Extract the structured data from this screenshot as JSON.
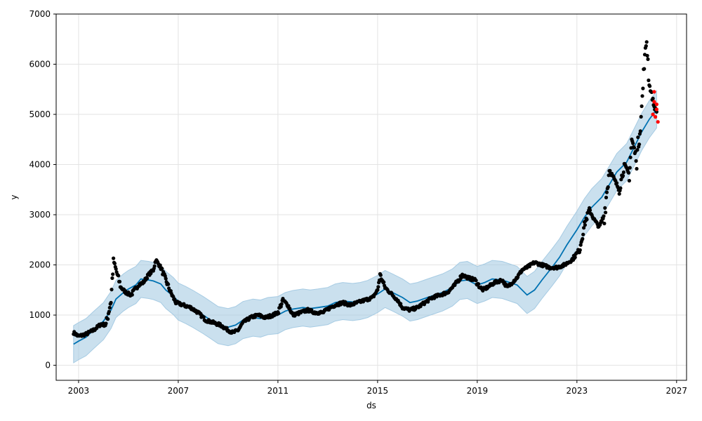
{
  "chart_data": {
    "type": "line",
    "title": "",
    "xlabel": "ds",
    "ylabel": "y",
    "xlim": [
      2002.1,
      2027.4
    ],
    "ylim": [
      -300,
      7000
    ],
    "x_ticks": [
      2003,
      2007,
      2011,
      2015,
      2019,
      2023,
      2027
    ],
    "y_ticks": [
      0,
      1000,
      2000,
      3000,
      4000,
      5000,
      6000,
      7000
    ],
    "x_tick_labels": [
      "2003",
      "2007",
      "2011",
      "2015",
      "2019",
      "2023",
      "2027"
    ],
    "y_tick_labels": [
      "0",
      "1000",
      "2000",
      "3000",
      "4000",
      "5000",
      "6000",
      "7000"
    ],
    "grid": true,
    "colors": {
      "actual": "#000000",
      "forecast": "#0072b2",
      "interval": "#a6cbe3",
      "highlight": "#ff0000"
    },
    "series": [
      {
        "kind": "forecast",
        "x": [
          2002.8,
          2003.0,
          2003.3,
          2003.6,
          2004.0,
          2004.3,
          2004.5,
          2004.8,
          2005.0,
          2005.3,
          2005.5,
          2005.8,
          2006.0,
          2006.3,
          2006.5,
          2006.8,
          2007.0,
          2007.3,
          2007.6,
          2008.0,
          2008.3,
          2008.6,
          2009.0,
          2009.3,
          2009.6,
          2010.0,
          2010.3,
          2010.6,
          2011.0,
          2011.3,
          2011.6,
          2012.0,
          2012.3,
          2012.6,
          2013.0,
          2013.3,
          2013.6,
          2014.0,
          2014.3,
          2014.6,
          2015.0,
          2015.3,
          2015.6,
          2016.0,
          2016.3,
          2016.6,
          2017.0,
          2017.3,
          2017.6,
          2018.0,
          2018.3,
          2018.6,
          2019.0,
          2019.3,
          2019.6,
          2020.0,
          2020.3,
          2020.6,
          2021.0,
          2021.3,
          2021.6,
          2022.0,
          2022.3,
          2022.6,
          2023.0,
          2023.3,
          2023.6,
          2024.0,
          2024.3,
          2024.6,
          2025.0,
          2025.3,
          2025.6,
          2025.9,
          2026.2
        ],
        "values": [
          420,
          480,
          560,
          700,
          880,
          1100,
          1320,
          1450,
          1520,
          1600,
          1720,
          1700,
          1680,
          1620,
          1500,
          1380,
          1270,
          1200,
          1120,
          1000,
          900,
          800,
          760,
          800,
          900,
          950,
          930,
          980,
          1000,
          1080,
          1120,
          1150,
          1130,
          1150,
          1180,
          1250,
          1280,
          1260,
          1280,
          1320,
          1420,
          1520,
          1450,
          1350,
          1250,
          1280,
          1350,
          1400,
          1450,
          1550,
          1680,
          1700,
          1600,
          1650,
          1720,
          1700,
          1650,
          1600,
          1400,
          1500,
          1700,
          1950,
          2150,
          2400,
          2700,
          2950,
          3150,
          3350,
          3600,
          3850,
          4050,
          4350,
          4650,
          4900,
          5100
        ]
      },
      {
        "kind": "interval-upper",
        "x": [
          2002.8,
          2003.0,
          2003.3,
          2003.6,
          2004.0,
          2004.3,
          2004.5,
          2004.8,
          2005.0,
          2005.3,
          2005.5,
          2005.8,
          2006.0,
          2006.3,
          2006.5,
          2006.8,
          2007.0,
          2007.3,
          2007.6,
          2008.0,
          2008.3,
          2008.6,
          2009.0,
          2009.3,
          2009.6,
          2010.0,
          2010.3,
          2010.6,
          2011.0,
          2011.3,
          2011.6,
          2012.0,
          2012.3,
          2012.6,
          2013.0,
          2013.3,
          2013.6,
          2014.0,
          2014.3,
          2014.6,
          2015.0,
          2015.3,
          2015.6,
          2016.0,
          2016.3,
          2016.6,
          2017.0,
          2017.3,
          2017.6,
          2018.0,
          2018.3,
          2018.6,
          2019.0,
          2019.3,
          2019.6,
          2020.0,
          2020.3,
          2020.6,
          2021.0,
          2021.3,
          2021.6,
          2022.0,
          2022.3,
          2022.6,
          2023.0,
          2023.3,
          2023.6,
          2024.0,
          2024.3,
          2024.6,
          2025.0,
          2025.3,
          2025.6,
          2025.9,
          2026.2
        ],
        "values": [
          790,
          850,
          930,
          1070,
          1250,
          1470,
          1690,
          1820,
          1890,
          1970,
          2090,
          2070,
          2050,
          1990,
          1870,
          1750,
          1640,
          1570,
          1490,
          1370,
          1270,
          1170,
          1130,
          1170,
          1270,
          1320,
          1300,
          1350,
          1370,
          1450,
          1490,
          1520,
          1500,
          1520,
          1550,
          1620,
          1650,
          1630,
          1650,
          1690,
          1790,
          1890,
          1820,
          1720,
          1620,
          1650,
          1720,
          1770,
          1820,
          1920,
          2050,
          2070,
          1970,
          2020,
          2090,
          2070,
          2020,
          1970,
          1770,
          1870,
          2070,
          2320,
          2520,
          2770,
          3070,
          3320,
          3520,
          3720,
          3970,
          4220,
          4420,
          4720,
          5020,
          5270,
          5470
        ]
      },
      {
        "kind": "interval-lower",
        "x": [
          2002.8,
          2003.0,
          2003.3,
          2003.6,
          2004.0,
          2004.3,
          2004.5,
          2004.8,
          2005.0,
          2005.3,
          2005.5,
          2005.8,
          2006.0,
          2006.3,
          2006.5,
          2006.8,
          2007.0,
          2007.3,
          2007.6,
          2008.0,
          2008.3,
          2008.6,
          2009.0,
          2009.3,
          2009.6,
          2010.0,
          2010.3,
          2010.6,
          2011.0,
          2011.3,
          2011.6,
          2012.0,
          2012.3,
          2012.6,
          2013.0,
          2013.3,
          2013.6,
          2014.0,
          2014.3,
          2014.6,
          2015.0,
          2015.3,
          2015.6,
          2016.0,
          2016.3,
          2016.6,
          2017.0,
          2017.3,
          2017.6,
          2018.0,
          2018.3,
          2018.6,
          2019.0,
          2019.3,
          2019.6,
          2020.0,
          2020.3,
          2020.6,
          2021.0,
          2021.3,
          2021.6,
          2022.0,
          2022.3,
          2022.6,
          2023.0,
          2023.3,
          2023.6,
          2024.0,
          2024.3,
          2024.6,
          2025.0,
          2025.3,
          2025.6,
          2025.9,
          2026.2
        ],
        "values": [
          50,
          110,
          190,
          330,
          510,
          730,
          950,
          1080,
          1150,
          1230,
          1350,
          1330,
          1310,
          1250,
          1130,
          1010,
          900,
          830,
          750,
          630,
          530,
          430,
          390,
          430,
          530,
          580,
          560,
          610,
          630,
          710,
          750,
          780,
          760,
          780,
          810,
          880,
          910,
          890,
          910,
          950,
          1050,
          1150,
          1080,
          980,
          880,
          910,
          980,
          1030,
          1080,
          1180,
          1310,
          1330,
          1230,
          1280,
          1350,
          1330,
          1280,
          1230,
          1030,
          1130,
          1330,
          1580,
          1780,
          2030,
          2330,
          2580,
          2780,
          2980,
          3230,
          3480,
          3680,
          3980,
          4280,
          4530,
          4730
        ]
      },
      {
        "kind": "actual",
        "x": [
          2002.8,
          2003.0,
          2003.3,
          2003.6,
          2003.9,
          2004.1,
          2004.3,
          2004.4,
          2004.5,
          2004.7,
          2004.9,
          2005.1,
          2005.4,
          2005.6,
          2005.8,
          2006.0,
          2006.1,
          2006.3,
          2006.5,
          2006.7,
          2006.9,
          2007.2,
          2007.5,
          2007.8,
          2008.1,
          2008.4,
          2008.7,
          2009.0,
          2009.2,
          2009.4,
          2009.6,
          2009.9,
          2010.2,
          2010.5,
          2010.8,
          2011.0,
          2011.2,
          2011.4,
          2011.6,
          2011.9,
          2012.2,
          2012.5,
          2012.8,
          2013.1,
          2013.3,
          2013.6,
          2013.9,
          2014.2,
          2014.5,
          2014.8,
          2015.0,
          2015.1,
          2015.3,
          2015.5,
          2015.8,
          2016.0,
          2016.3,
          2016.6,
          2016.9,
          2017.2,
          2017.5,
          2017.8,
          2018.1,
          2018.4,
          2018.6,
          2018.9,
          2019.2,
          2019.4,
          2019.7,
          2020.0,
          2020.2,
          2020.4,
          2020.6,
          2020.8,
          2021.0,
          2021.3,
          2021.6,
          2021.9,
          2022.2,
          2022.5,
          2022.8,
          2023.1,
          2023.3,
          2023.5,
          2023.7,
          2023.9,
          2024.1,
          2024.3,
          2024.5,
          2024.7,
          2024.9,
          2025.1,
          2025.2,
          2025.4,
          2025.6,
          2025.7,
          2025.8,
          2025.9,
          2026.0,
          2026.1,
          2026.2
        ],
        "values": [
          650,
          580,
          620,
          700,
          820,
          800,
          1300,
          2100,
          1900,
          1550,
          1450,
          1400,
          1600,
          1650,
          1800,
          1900,
          2100,
          1950,
          1700,
          1450,
          1250,
          1200,
          1150,
          1050,
          900,
          850,
          800,
          700,
          650,
          700,
          850,
          950,
          1000,
          950,
          1000,
          1050,
          1300,
          1200,
          1000,
          1050,
          1100,
          1050,
          1050,
          1150,
          1200,
          1250,
          1200,
          1250,
          1300,
          1350,
          1500,
          1800,
          1550,
          1450,
          1300,
          1150,
          1100,
          1150,
          1250,
          1350,
          1400,
          1450,
          1600,
          1800,
          1750,
          1700,
          1500,
          1550,
          1650,
          1700,
          1550,
          1650,
          1750,
          1900,
          1950,
          2050,
          2000,
          1950,
          1950,
          2000,
          2100,
          2300,
          2800,
          3100,
          2900,
          2750,
          3000,
          3900,
          3700,
          3500,
          4000,
          3800,
          4500,
          4100,
          5100,
          6000,
          6500,
          5600,
          5400,
          5150,
          5050
        ]
      },
      {
        "kind": "highlight",
        "x": [
          2026.05,
          2026.1,
          2026.15,
          2026.2,
          2026.25,
          2026.1,
          2026.2
        ],
        "values": [
          5000,
          5250,
          4950,
          5100,
          4850,
          5450,
          5200
        ]
      }
    ]
  }
}
